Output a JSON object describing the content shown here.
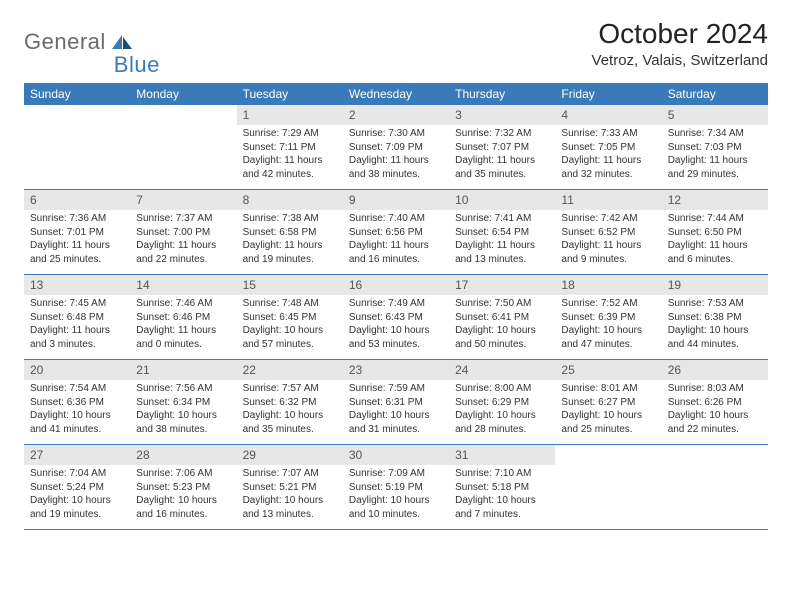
{
  "logo": {
    "word1": "General",
    "word2": "Blue"
  },
  "title": "October 2024",
  "location": "Vetroz, Valais, Switzerland",
  "colors": {
    "header_bg": "#3a7ab8",
    "header_text": "#ffffff",
    "daynum_bg": "#e7e7e7",
    "daynum_text": "#555555",
    "body_text": "#333333",
    "rule": "#3a7ab8",
    "logo_gray": "#6b6b6b",
    "logo_blue": "#3a7ab8"
  },
  "weekdays": [
    "Sunday",
    "Monday",
    "Tuesday",
    "Wednesday",
    "Thursday",
    "Friday",
    "Saturday"
  ],
  "weeks": [
    [
      null,
      null,
      {
        "n": "1",
        "sunrise": "7:29 AM",
        "sunset": "7:11 PM",
        "daylight": "11 hours and 42 minutes."
      },
      {
        "n": "2",
        "sunrise": "7:30 AM",
        "sunset": "7:09 PM",
        "daylight": "11 hours and 38 minutes."
      },
      {
        "n": "3",
        "sunrise": "7:32 AM",
        "sunset": "7:07 PM",
        "daylight": "11 hours and 35 minutes."
      },
      {
        "n": "4",
        "sunrise": "7:33 AM",
        "sunset": "7:05 PM",
        "daylight": "11 hours and 32 minutes."
      },
      {
        "n": "5",
        "sunrise": "7:34 AM",
        "sunset": "7:03 PM",
        "daylight": "11 hours and 29 minutes."
      }
    ],
    [
      {
        "n": "6",
        "sunrise": "7:36 AM",
        "sunset": "7:01 PM",
        "daylight": "11 hours and 25 minutes."
      },
      {
        "n": "7",
        "sunrise": "7:37 AM",
        "sunset": "7:00 PM",
        "daylight": "11 hours and 22 minutes."
      },
      {
        "n": "8",
        "sunrise": "7:38 AM",
        "sunset": "6:58 PM",
        "daylight": "11 hours and 19 minutes."
      },
      {
        "n": "9",
        "sunrise": "7:40 AM",
        "sunset": "6:56 PM",
        "daylight": "11 hours and 16 minutes."
      },
      {
        "n": "10",
        "sunrise": "7:41 AM",
        "sunset": "6:54 PM",
        "daylight": "11 hours and 13 minutes."
      },
      {
        "n": "11",
        "sunrise": "7:42 AM",
        "sunset": "6:52 PM",
        "daylight": "11 hours and 9 minutes."
      },
      {
        "n": "12",
        "sunrise": "7:44 AM",
        "sunset": "6:50 PM",
        "daylight": "11 hours and 6 minutes."
      }
    ],
    [
      {
        "n": "13",
        "sunrise": "7:45 AM",
        "sunset": "6:48 PM",
        "daylight": "11 hours and 3 minutes."
      },
      {
        "n": "14",
        "sunrise": "7:46 AM",
        "sunset": "6:46 PM",
        "daylight": "11 hours and 0 minutes."
      },
      {
        "n": "15",
        "sunrise": "7:48 AM",
        "sunset": "6:45 PM",
        "daylight": "10 hours and 57 minutes."
      },
      {
        "n": "16",
        "sunrise": "7:49 AM",
        "sunset": "6:43 PM",
        "daylight": "10 hours and 53 minutes."
      },
      {
        "n": "17",
        "sunrise": "7:50 AM",
        "sunset": "6:41 PM",
        "daylight": "10 hours and 50 minutes."
      },
      {
        "n": "18",
        "sunrise": "7:52 AM",
        "sunset": "6:39 PM",
        "daylight": "10 hours and 47 minutes."
      },
      {
        "n": "19",
        "sunrise": "7:53 AM",
        "sunset": "6:38 PM",
        "daylight": "10 hours and 44 minutes."
      }
    ],
    [
      {
        "n": "20",
        "sunrise": "7:54 AM",
        "sunset": "6:36 PM",
        "daylight": "10 hours and 41 minutes."
      },
      {
        "n": "21",
        "sunrise": "7:56 AM",
        "sunset": "6:34 PM",
        "daylight": "10 hours and 38 minutes."
      },
      {
        "n": "22",
        "sunrise": "7:57 AM",
        "sunset": "6:32 PM",
        "daylight": "10 hours and 35 minutes."
      },
      {
        "n": "23",
        "sunrise": "7:59 AM",
        "sunset": "6:31 PM",
        "daylight": "10 hours and 31 minutes."
      },
      {
        "n": "24",
        "sunrise": "8:00 AM",
        "sunset": "6:29 PM",
        "daylight": "10 hours and 28 minutes."
      },
      {
        "n": "25",
        "sunrise": "8:01 AM",
        "sunset": "6:27 PM",
        "daylight": "10 hours and 25 minutes."
      },
      {
        "n": "26",
        "sunrise": "8:03 AM",
        "sunset": "6:26 PM",
        "daylight": "10 hours and 22 minutes."
      }
    ],
    [
      {
        "n": "27",
        "sunrise": "7:04 AM",
        "sunset": "5:24 PM",
        "daylight": "10 hours and 19 minutes."
      },
      {
        "n": "28",
        "sunrise": "7:06 AM",
        "sunset": "5:23 PM",
        "daylight": "10 hours and 16 minutes."
      },
      {
        "n": "29",
        "sunrise": "7:07 AM",
        "sunset": "5:21 PM",
        "daylight": "10 hours and 13 minutes."
      },
      {
        "n": "30",
        "sunrise": "7:09 AM",
        "sunset": "5:19 PM",
        "daylight": "10 hours and 10 minutes."
      },
      {
        "n": "31",
        "sunrise": "7:10 AM",
        "sunset": "5:18 PM",
        "daylight": "10 hours and 7 minutes."
      },
      null,
      null
    ]
  ],
  "labels": {
    "sunrise": "Sunrise:",
    "sunset": "Sunset:",
    "daylight": "Daylight:"
  }
}
